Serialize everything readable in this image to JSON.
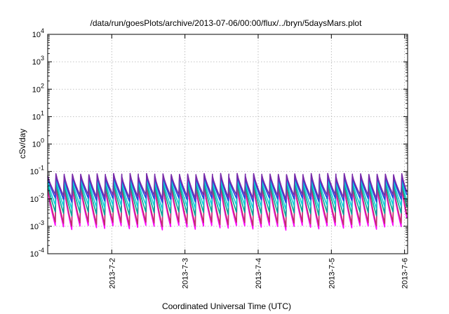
{
  "chart_data": {
    "type": "line",
    "title": "/data/run/goesPlots/archive/2013-07-06/00:00/flux/../bryn/5daysMars.plot",
    "xlabel": "Coordinated Universal Time (UTC)",
    "ylabel": "cSv/day",
    "x_range": [
      "2013-07-01T03:00",
      "2013-07-06T01:00"
    ],
    "x_ticks": [
      {
        "value": "2013-07-02T00:00",
        "label": "2013-7-2"
      },
      {
        "value": "2013-07-03T00:00",
        "label": "2013-7-3"
      },
      {
        "value": "2013-07-04T00:00",
        "label": "2013-7-4"
      },
      {
        "value": "2013-07-05T00:00",
        "label": "2013-7-5"
      },
      {
        "value": "2013-07-06T00:00",
        "label": "2013-7-6"
      }
    ],
    "y_scale": "log",
    "ylim": [
      0.0001,
      10000
    ],
    "y_ticks": [
      {
        "value": 0.0001,
        "base": "10",
        "exp": "-4"
      },
      {
        "value": 0.001,
        "base": "10",
        "exp": "-3"
      },
      {
        "value": 0.01,
        "base": "10",
        "exp": "-2"
      },
      {
        "value": 0.1,
        "base": "10",
        "exp": "-1"
      },
      {
        "value": 1,
        "base": "10",
        "exp": "0"
      },
      {
        "value": 10,
        "base": "10",
        "exp": "1"
      },
      {
        "value": 100,
        "base": "10",
        "exp": "2"
      },
      {
        "value": 1000,
        "base": "10",
        "exp": "3"
      },
      {
        "value": 10000,
        "base": "10",
        "exp": "4"
      }
    ],
    "grid": true,
    "legend": "none",
    "pattern": {
      "kind": "sawtooth",
      "cycles": 44,
      "first_peak": "2013-07-01T03:00",
      "period_hours": 2.7
    },
    "series": [
      {
        "color": "#ff00ff",
        "peak": 0.028,
        "trough": 0.0009
      },
      {
        "color": "#c0306a",
        "peak": 0.035,
        "trough": 0.0012
      },
      {
        "color": "#00a896",
        "peak": 0.045,
        "trough": 0.0028
      },
      {
        "color": "#10d0d8",
        "peak": 0.06,
        "trough": 0.005
      },
      {
        "color": "#2048e0",
        "peak": 0.075,
        "trough": 0.009
      },
      {
        "color": "#7a2aa8",
        "peak": 0.085,
        "trough": 0.012
      }
    ]
  }
}
